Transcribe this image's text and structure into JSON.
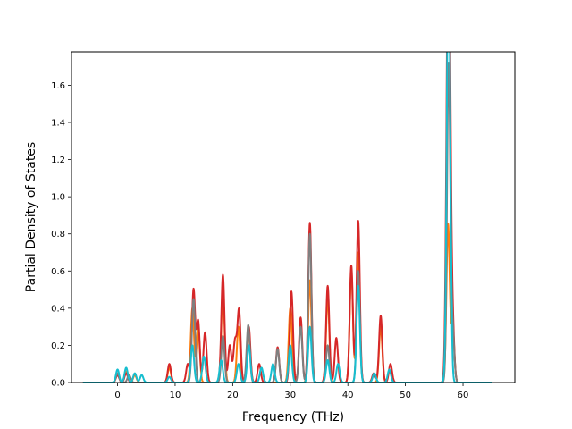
{
  "chart_data": {
    "type": "line",
    "title": "",
    "xlabel": "Frequency (THz)",
    "ylabel": "Partial Density of States",
    "xlim": [
      -8,
      69
    ],
    "ylim": [
      0,
      1.78
    ],
    "x_ticks": [
      0,
      10,
      20,
      30,
      40,
      50,
      60
    ],
    "y_ticks": [
      0.0,
      0.2,
      0.4,
      0.6,
      0.8,
      1.0,
      1.2,
      1.4,
      1.6
    ],
    "x_tick_labels": [
      "0",
      "10",
      "20",
      "30",
      "40",
      "50",
      "60"
    ],
    "y_tick_labels": [
      "0.0",
      "0.2",
      "0.4",
      "0.6",
      "0.8",
      "1.0",
      "1.2",
      "1.4",
      "1.6"
    ],
    "grid": false,
    "legend": "none",
    "x_range_plotted": [
      -6,
      65
    ],
    "series": [
      {
        "color": "#ff7f0e",
        "peaks": [
          [
            0,
            0.05
          ],
          [
            1.5,
            0.06
          ],
          [
            3,
            0.04
          ],
          [
            9,
            0.08
          ],
          [
            13,
            0.4
          ],
          [
            14,
            0.3
          ],
          [
            18.3,
            0.5
          ],
          [
            21,
            0.3
          ],
          [
            22.8,
            0.26
          ],
          [
            30,
            0.4
          ],
          [
            33.4,
            0.55
          ],
          [
            36.5,
            0.45
          ],
          [
            40.6,
            0.6
          ],
          [
            41.8,
            0.7
          ],
          [
            45.7,
            0.3
          ],
          [
            57.4,
            0.85
          ],
          [
            58.2,
            0.3
          ]
        ]
      },
      {
        "color": "#d62728",
        "peaks": [
          [
            0,
            0.04
          ],
          [
            1.5,
            0.05
          ],
          [
            9,
            0.1
          ],
          [
            12.2,
            0.1
          ],
          [
            13.2,
            0.5
          ],
          [
            14,
            0.33
          ],
          [
            15.2,
            0.27
          ],
          [
            18.3,
            0.58
          ],
          [
            19.5,
            0.2
          ],
          [
            20.4,
            0.22
          ],
          [
            21.1,
            0.39
          ],
          [
            22.8,
            0.3
          ],
          [
            24.6,
            0.1
          ],
          [
            27.8,
            0.19
          ],
          [
            30.2,
            0.49
          ],
          [
            31.8,
            0.35
          ],
          [
            33.4,
            0.86
          ],
          [
            36.5,
            0.52
          ],
          [
            38,
            0.24
          ],
          [
            40.6,
            0.63
          ],
          [
            41.8,
            0.87
          ],
          [
            44.5,
            0.05
          ],
          [
            45.7,
            0.36
          ],
          [
            47.4,
            0.1
          ],
          [
            57.3,
            1.25
          ],
          [
            57.6,
            1.7
          ],
          [
            58.2,
            0.3
          ]
        ]
      },
      {
        "color": "#7f7f7f",
        "peaks": [
          [
            0,
            0.05
          ],
          [
            2,
            0.04
          ],
          [
            13.2,
            0.45
          ],
          [
            18.3,
            0.25
          ],
          [
            22.7,
            0.31
          ],
          [
            27.8,
            0.18
          ],
          [
            31.8,
            0.3
          ],
          [
            33.4,
            0.8
          ],
          [
            36.5,
            0.2
          ],
          [
            41.8,
            0.6
          ],
          [
            57.5,
            1.71
          ],
          [
            58.2,
            0.28
          ]
        ]
      },
      {
        "color": "#17becf",
        "peaks": [
          [
            0,
            0.07
          ],
          [
            1.5,
            0.08
          ],
          [
            3,
            0.05
          ],
          [
            4.2,
            0.04
          ],
          [
            9,
            0.03
          ],
          [
            13,
            0.2
          ],
          [
            15,
            0.14
          ],
          [
            18,
            0.12
          ],
          [
            21,
            0.1
          ],
          [
            22.8,
            0.2
          ],
          [
            25,
            0.08
          ],
          [
            27,
            0.1
          ],
          [
            30,
            0.2
          ],
          [
            33.4,
            0.3
          ],
          [
            36.5,
            0.12
          ],
          [
            38.3,
            0.1
          ],
          [
            41.8,
            0.52
          ],
          [
            44.6,
            0.05
          ],
          [
            47.2,
            0.07
          ],
          [
            57.4,
            1.45
          ],
          [
            57.6,
            1.08
          ]
        ]
      }
    ]
  }
}
